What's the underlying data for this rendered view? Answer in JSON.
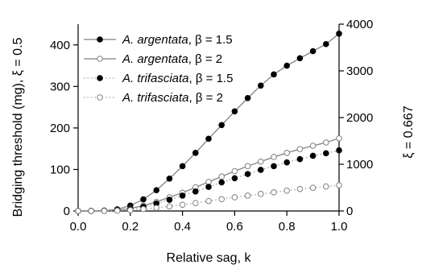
{
  "chart_data": {
    "type": "line",
    "xlabel": "Relative sag, k",
    "ylabel_left": "Bridging threshold (mg), ξ = 0.5",
    "ylabel_right": "ξ = 0.667",
    "xlim": [
      0,
      1
    ],
    "ylim_left": [
      0,
      450
    ],
    "ylim_right": [
      0,
      4000
    ],
    "x_ticks": [
      "0.0",
      "0.2",
      "0.4",
      "0.6",
      "0.8",
      "1.0"
    ],
    "y_left_ticks": [
      "0",
      "100",
      "200",
      "300",
      "400"
    ],
    "y_right_ticks": [
      "0",
      "1000",
      "2000",
      "3000",
      "4000"
    ],
    "grid": false,
    "legend_placement": "top-left",
    "series": [
      {
        "name": "A. argentata, β = 1.5",
        "label_species": "A. argentata",
        "label_param": ", β = 1.5",
        "marker": "filled-circle",
        "line": "solid",
        "line_color": "#808080",
        "x": [
          0.0,
          0.05,
          0.1,
          0.15,
          0.2,
          0.25,
          0.3,
          0.35,
          0.4,
          0.45,
          0.5,
          0.55,
          0.6,
          0.65,
          0.7,
          0.75,
          0.8,
          0.85,
          0.9,
          0.95,
          1.0
        ],
        "values": [
          0,
          0.2,
          1,
          4,
          13,
          28,
          50,
          78,
          108,
          140,
          174,
          207,
          240,
          272,
          302,
          329,
          350,
          368,
          385,
          402,
          427
        ]
      },
      {
        "name": "A. argentata, β = 2",
        "label_species": "A. argentata",
        "label_param": ", β = 2",
        "marker": "open-circle",
        "line": "solid",
        "line_color": "#808080",
        "x": [
          0.0,
          0.05,
          0.1,
          0.15,
          0.2,
          0.25,
          0.3,
          0.35,
          0.4,
          0.45,
          0.5,
          0.55,
          0.6,
          0.65,
          0.7,
          0.75,
          0.8,
          0.85,
          0.9,
          0.95,
          1.0
        ],
        "values": [
          0,
          0.1,
          0.5,
          2,
          6,
          13,
          22,
          33,
          44,
          57,
          70,
          83,
          96,
          108,
          119,
          130,
          140,
          149,
          157,
          165,
          175
        ]
      },
      {
        "name": "A. trifasciata, β = 1.5",
        "label_species": "A. trifasciata",
        "label_param": ", β = 1.5",
        "marker": "filled-circle",
        "line": "dotted",
        "line_color": "#a0a0a0",
        "x": [
          0.0,
          0.05,
          0.1,
          0.15,
          0.2,
          0.25,
          0.3,
          0.35,
          0.4,
          0.45,
          0.5,
          0.55,
          0.6,
          0.65,
          0.7,
          0.75,
          0.8,
          0.85,
          0.9,
          0.95,
          1.0
        ],
        "values": [
          0,
          0.1,
          0.4,
          2,
          5,
          10,
          18,
          27,
          37,
          47,
          58,
          69,
          79,
          89,
          99,
          108,
          117,
          125,
          133,
          139,
          146
        ]
      },
      {
        "name": "A. trifasciata, β = 2",
        "label_species": "A. trifasciata",
        "label_param": ", β = 2",
        "marker": "open-circle",
        "line": "dotted",
        "line_color": "#a0a0a0",
        "x": [
          0.0,
          0.05,
          0.1,
          0.15,
          0.2,
          0.25,
          0.3,
          0.35,
          0.4,
          0.45,
          0.5,
          0.55,
          0.6,
          0.65,
          0.7,
          0.75,
          0.8,
          0.85,
          0.9,
          0.95,
          1.0
        ],
        "values": [
          0,
          0,
          0.2,
          0.8,
          2,
          4.5,
          7.5,
          11,
          15,
          19,
          24,
          28.5,
          33,
          37,
          41,
          45,
          49,
          53,
          56,
          59,
          62
        ]
      }
    ]
  }
}
